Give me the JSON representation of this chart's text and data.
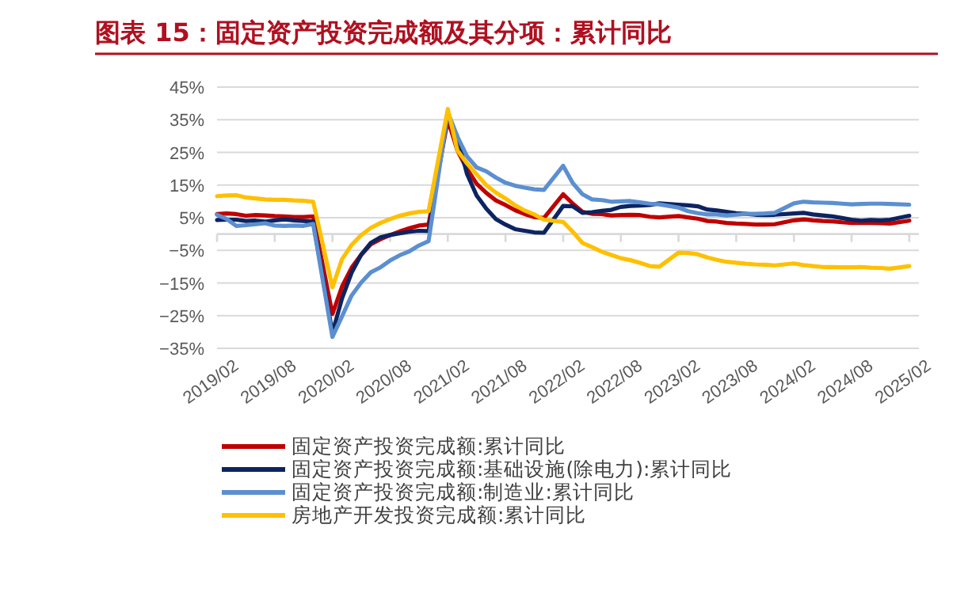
{
  "chart_data": {
    "type": "line",
    "title": "图表 15：固定资产投资完成额及其分项：累计同比",
    "x": [
      "2019-02",
      "2019-03",
      "2019-04",
      "2019-05",
      "2019-06",
      "2019-07",
      "2019-08",
      "2019-09",
      "2019-10",
      "2019-11",
      "2019-12",
      "2020-02",
      "2020-03",
      "2020-04",
      "2020-05",
      "2020-06",
      "2020-07",
      "2020-08",
      "2020-09",
      "2020-10",
      "2020-11",
      "2020-12",
      "2021-02",
      "2021-03",
      "2021-04",
      "2021-05",
      "2021-06",
      "2021-07",
      "2021-08",
      "2021-09",
      "2021-10",
      "2021-11",
      "2021-12",
      "2022-02",
      "2022-03",
      "2022-04",
      "2022-05",
      "2022-06",
      "2022-07",
      "2022-08",
      "2022-09",
      "2022-10",
      "2022-11",
      "2022-12",
      "2023-02",
      "2023-03",
      "2023-04",
      "2023-05",
      "2023-06",
      "2023-07",
      "2023-08",
      "2023-09",
      "2023-10",
      "2023-11",
      "2023-12",
      "2024-02",
      "2024-03",
      "2024-04",
      "2024-05",
      "2024-06",
      "2024-07",
      "2024-08",
      "2024-09",
      "2024-10",
      "2024-11",
      "2024-12",
      "2025-02"
    ],
    "series": [
      {
        "name": "固定资产投资完成额:累计同比",
        "color": "#c00000",
        "values": [
          6.1,
          6.3,
          6.1,
          5.6,
          5.8,
          5.7,
          5.5,
          5.4,
          5.2,
          5.2,
          5.4,
          -24.5,
          -16.1,
          -10.3,
          -6.3,
          -3.1,
          -1.6,
          -0.3,
          0.8,
          1.8,
          2.6,
          2.9,
          35.0,
          25.6,
          19.9,
          15.4,
          12.6,
          10.3,
          8.9,
          7.3,
          6.1,
          5.2,
          4.9,
          12.2,
          9.3,
          6.8,
          6.2,
          6.1,
          5.7,
          5.8,
          5.9,
          5.8,
          5.3,
          5.1,
          5.5,
          5.1,
          4.7,
          4.0,
          3.8,
          3.4,
          3.2,
          3.1,
          2.9,
          2.9,
          3.0,
          4.2,
          4.5,
          4.2,
          4.0,
          3.9,
          3.6,
          3.4,
          3.4,
          3.4,
          3.3,
          3.2,
          4.1
        ]
      },
      {
        "name": "固定资产投资完成额:基础设施(除电力):累计同比",
        "color": "#0c2461",
        "values": [
          4.3,
          4.4,
          4.4,
          4.0,
          4.1,
          3.8,
          4.2,
          4.5,
          4.2,
          4.0,
          3.8,
          -30.3,
          -19.7,
          -11.8,
          -6.3,
          -2.7,
          -1.0,
          -0.3,
          0.2,
          0.7,
          1.0,
          0.9,
          36.6,
          29.7,
          18.4,
          11.8,
          7.8,
          4.6,
          2.9,
          1.5,
          1.0,
          0.5,
          0.4,
          8.6,
          8.5,
          6.5,
          6.7,
          7.1,
          7.4,
          8.3,
          8.6,
          8.7,
          8.9,
          9.4,
          9.0,
          8.8,
          8.5,
          7.5,
          7.2,
          6.8,
          6.4,
          6.2,
          5.9,
          5.8,
          5.9,
          6.3,
          6.5,
          6.0,
          5.7,
          5.4,
          4.9,
          4.4,
          4.1,
          4.3,
          4.2,
          4.4,
          5.6
        ]
      },
      {
        "name": "固定资产投资完成额:制造业:累计同比",
        "color": "#5b8fd0",
        "values": [
          5.9,
          4.6,
          2.5,
          2.7,
          3.0,
          3.3,
          2.6,
          2.5,
          2.6,
          2.5,
          3.1,
          -31.5,
          -25.2,
          -18.8,
          -14.8,
          -11.7,
          -10.2,
          -8.1,
          -6.5,
          -5.3,
          -3.5,
          -2.2,
          37.3,
          29.8,
          23.8,
          20.4,
          19.2,
          17.3,
          15.7,
          14.8,
          14.2,
          13.7,
          13.5,
          20.9,
          15.6,
          12.2,
          10.6,
          10.4,
          9.9,
          10.0,
          10.1,
          9.7,
          9.3,
          9.1,
          8.1,
          7.0,
          6.4,
          6.0,
          6.0,
          5.7,
          5.9,
          6.2,
          6.2,
          6.3,
          6.5,
          9.4,
          9.9,
          9.7,
          9.6,
          9.5,
          9.3,
          9.1,
          9.2,
          9.3,
          9.3,
          9.2,
          9.0
        ]
      },
      {
        "name": "房地产开发投资完成额:累计同比",
        "color": "#ffc000",
        "values": [
          11.6,
          11.8,
          11.9,
          11.2,
          10.9,
          10.6,
          10.5,
          10.5,
          10.3,
          10.2,
          9.9,
          -16.3,
          -7.7,
          -3.3,
          -0.3,
          1.9,
          3.4,
          4.6,
          5.6,
          6.3,
          6.8,
          7.0,
          38.3,
          25.6,
          21.6,
          18.3,
          15.0,
          12.7,
          10.9,
          8.8,
          7.2,
          6.0,
          4.4,
          3.7,
          0.7,
          -2.7,
          -4.0,
          -5.4,
          -6.4,
          -7.4,
          -8.0,
          -8.8,
          -9.8,
          -10.0,
          -5.7,
          -5.8,
          -6.2,
          -7.2,
          -7.9,
          -8.5,
          -8.8,
          -9.1,
          -9.3,
          -9.4,
          -9.6,
          -9.0,
          -9.5,
          -9.8,
          -10.1,
          -10.1,
          -10.2,
          -10.2,
          -10.1,
          -10.3,
          -10.4,
          -10.6,
          -9.8
        ]
      }
    ],
    "xlim": [
      "2019-02",
      "2025-03"
    ],
    "xticks": [
      {
        "value": "2019-02",
        "label": "2019/02"
      },
      {
        "value": "2019-08",
        "label": "2019/08"
      },
      {
        "value": "2020-02",
        "label": "2020/02"
      },
      {
        "value": "2020-08",
        "label": "2020/08"
      },
      {
        "value": "2021-02",
        "label": "2021/02"
      },
      {
        "value": "2021-08",
        "label": "2021/08"
      },
      {
        "value": "2022-02",
        "label": "2022/02"
      },
      {
        "value": "2022-08",
        "label": "2022/08"
      },
      {
        "value": "2023-02",
        "label": "2023/02"
      },
      {
        "value": "2023-08",
        "label": "2023/08"
      },
      {
        "value": "2024-02",
        "label": "2024/02"
      },
      {
        "value": "2024-08",
        "label": "2024/08"
      },
      {
        "value": "2025-02",
        "label": "2025/02"
      }
    ],
    "ylim": [
      -35,
      45
    ],
    "yticks": [
      {
        "value": -35,
        "label": "−35%"
      },
      {
        "value": -25,
        "label": "−25%"
      },
      {
        "value": -15,
        "label": "−15%"
      },
      {
        "value": -5,
        "label": "−5%"
      },
      {
        "value": 5,
        "label": "5%"
      },
      {
        "value": 15,
        "label": "15%"
      },
      {
        "value": 25,
        "label": "25%"
      },
      {
        "value": 35,
        "label": "35%"
      },
      {
        "value": 45,
        "label": "45%"
      }
    ],
    "grid": "y",
    "legend": "bottom",
    "line_style": "solid",
    "marker": "none"
  }
}
